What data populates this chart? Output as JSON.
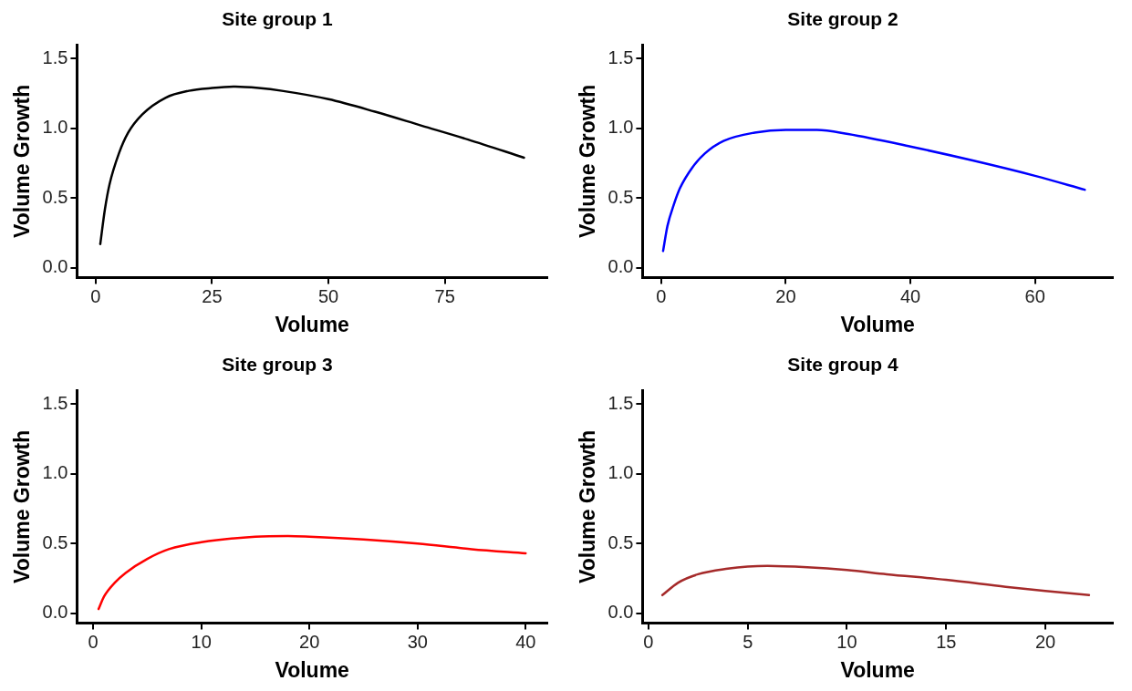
{
  "chart_data": [
    {
      "type": "line",
      "title": "Site group 1",
      "xlabel": "Volume",
      "ylabel": "Volume Growth",
      "xlim": [
        -4,
        97
      ],
      "xticks": [
        0,
        25,
        50,
        75
      ],
      "ylim": [
        -0.07,
        1.6
      ],
      "yticks": [
        {
          "value": 0,
          "label": "0.0"
        },
        {
          "value": 0.5,
          "label": "0.5"
        },
        {
          "value": 1,
          "label": "1.0"
        },
        {
          "value": 1.5,
          "label": "1.5"
        }
      ],
      "grid": false,
      "legend": false,
      "marker": "none",
      "line_style": "solid",
      "series": [
        {
          "color": "#000000",
          "x": [
            1,
            2,
            3,
            5,
            7,
            10,
            15,
            20,
            25,
            30,
            35,
            40,
            50,
            60,
            70,
            80,
            92
          ],
          "values": [
            0.17,
            0.42,
            0.6,
            0.82,
            0.97,
            1.1,
            1.22,
            1.27,
            1.29,
            1.3,
            1.29,
            1.27,
            1.21,
            1.12,
            1.02,
            0.92,
            0.79
          ]
        }
      ]
    },
    {
      "type": "line",
      "title": "Site group 2",
      "xlabel": "Volume",
      "ylabel": "Volume Growth",
      "xlim": [
        -3,
        72.5
      ],
      "xticks": [
        0,
        20,
        40,
        60
      ],
      "ylim": [
        -0.07,
        1.6
      ],
      "yticks": [
        {
          "value": 0,
          "label": "0.0"
        },
        {
          "value": 0.5,
          "label": "0.5"
        },
        {
          "value": 1,
          "label": "1.0"
        },
        {
          "value": 1.5,
          "label": "1.5"
        }
      ],
      "grid": false,
      "legend": false,
      "marker": "none",
      "line_style": "solid",
      "series": [
        {
          "color": "#0000ff",
          "x": [
            0.3,
            1,
            2,
            3,
            5,
            7,
            10,
            15,
            20,
            25,
            30,
            40,
            50,
            60,
            68
          ],
          "values": [
            0.12,
            0.3,
            0.45,
            0.57,
            0.72,
            0.82,
            0.91,
            0.97,
            0.99,
            0.99,
            0.96,
            0.87,
            0.77,
            0.66,
            0.56
          ]
        }
      ]
    },
    {
      "type": "line",
      "title": "Site group 3",
      "xlabel": "Volume",
      "ylabel": "Volume Growth",
      "xlim": [
        -1.5,
        42
      ],
      "xticks": [
        0,
        10,
        20,
        30,
        40
      ],
      "ylim": [
        -0.07,
        1.6
      ],
      "yticks": [
        {
          "value": 0,
          "label": "0.0"
        },
        {
          "value": 0.5,
          "label": "0.5"
        },
        {
          "value": 1,
          "label": "1.0"
        },
        {
          "value": 1.5,
          "label": "1.5"
        }
      ],
      "grid": false,
      "legend": false,
      "marker": "none",
      "line_style": "solid",
      "series": [
        {
          "color": "#ff0000",
          "x": [
            0.5,
            1,
            2,
            3,
            5,
            7,
            10,
            15,
            18,
            20,
            25,
            30,
            35,
            40
          ],
          "values": [
            0.03,
            0.12,
            0.22,
            0.29,
            0.39,
            0.46,
            0.51,
            0.55,
            0.555,
            0.55,
            0.53,
            0.5,
            0.46,
            0.43
          ]
        }
      ]
    },
    {
      "type": "line",
      "title": "Site group 4",
      "xlabel": "Volume",
      "ylabel": "Volume Growth",
      "xlim": [
        -0.3,
        23.4
      ],
      "xticks": [
        0,
        5,
        10,
        15,
        20
      ],
      "ylim": [
        -0.07,
        1.6
      ],
      "yticks": [
        {
          "value": 0,
          "label": "0.0"
        },
        {
          "value": 0.5,
          "label": "0.5"
        },
        {
          "value": 1,
          "label": "1.0"
        },
        {
          "value": 1.5,
          "label": "1.5"
        }
      ],
      "grid": false,
      "legend": false,
      "marker": "none",
      "line_style": "solid",
      "series": [
        {
          "color": "#a52a2a",
          "x": [
            0.7,
            1.5,
            2.5,
            4,
            5,
            6,
            8,
            10,
            12,
            15,
            18,
            20,
            22.2
          ],
          "values": [
            0.13,
            0.22,
            0.28,
            0.32,
            0.335,
            0.34,
            0.33,
            0.31,
            0.28,
            0.24,
            0.19,
            0.16,
            0.13
          ]
        }
      ]
    }
  ]
}
